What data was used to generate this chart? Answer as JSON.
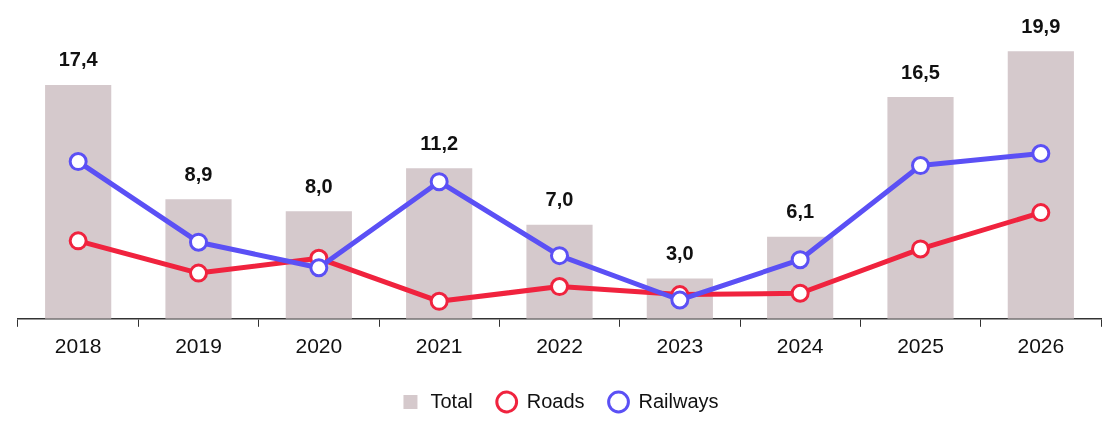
{
  "chart_data": {
    "type": "bar",
    "categories": [
      "2018",
      "2019",
      "2020",
      "2021",
      "2022",
      "2023",
      "2024",
      "2025",
      "2026"
    ],
    "series": [
      {
        "name": "Total",
        "color": "#d5c9cc",
        "values": [
          17.4,
          8.9,
          8.0,
          11.2,
          7.0,
          3.0,
          6.1,
          16.5,
          19.9
        ],
        "value_labels": [
          "17,4",
          "8,9",
          "8,0",
          "11,2",
          "7,0",
          "3,0",
          "6,1",
          "16,5",
          "19,9"
        ]
      },
      {
        "name": "Roads",
        "type": "line",
        "color": "#f0233e",
        "values": [
          5.8,
          3.4,
          4.5,
          1.3,
          2.4,
          1.8,
          1.9,
          5.2,
          7.9
        ]
      },
      {
        "name": "Railways",
        "type": "line",
        "color": "#5b50f5",
        "values": [
          11.7,
          5.7,
          3.8,
          10.2,
          4.7,
          1.4,
          4.4,
          11.4,
          12.3
        ]
      }
    ],
    "tick_labels": "x",
    "grid": false,
    "legend": "bottom",
    "marker": "circle"
  }
}
